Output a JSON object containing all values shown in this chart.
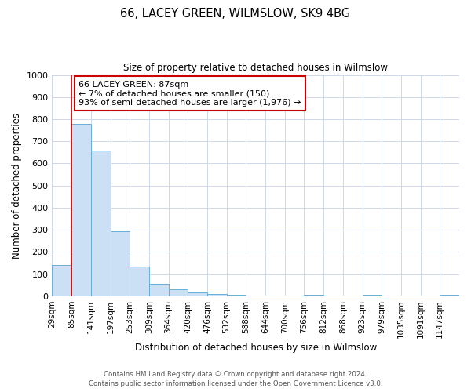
{
  "title": "66, LACEY GREEN, WILMSLOW, SK9 4BG",
  "subtitle": "Size of property relative to detached houses in Wilmslow",
  "xlabel": "Distribution of detached houses by size in Wilmslow",
  "ylabel": "Number of detached properties",
  "bar_labels": [
    "29sqm",
    "85sqm",
    "141sqm",
    "197sqm",
    "253sqm",
    "309sqm",
    "364sqm",
    "420sqm",
    "476sqm",
    "532sqm",
    "588sqm",
    "644sqm",
    "700sqm",
    "756sqm",
    "812sqm",
    "868sqm",
    "923sqm",
    "979sqm",
    "1035sqm",
    "1091sqm",
    "1147sqm"
  ],
  "bar_values": [
    140,
    780,
    660,
    295,
    135,
    57,
    32,
    17,
    10,
    8,
    3,
    3,
    3,
    8,
    3,
    3,
    8,
    3,
    3,
    3,
    5
  ],
  "bar_color": "#cce0f5",
  "bar_edge_color": "#6aaed6",
  "red_line_x": 1,
  "ylim": [
    0,
    1000
  ],
  "yticks": [
    0,
    100,
    200,
    300,
    400,
    500,
    600,
    700,
    800,
    900,
    1000
  ],
  "annotation_title": "66 LACEY GREEN: 87sqm",
  "annotation_line1": "← 7% of detached houses are smaller (150)",
  "annotation_line2": "93% of semi-detached houses are larger (1,976) →",
  "annotation_box_color": "#ffffff",
  "annotation_box_edge": "#cc0000",
  "footer_line1": "Contains HM Land Registry data © Crown copyright and database right 2024.",
  "footer_line2": "Contains public sector information licensed under the Open Government Licence v3.0.",
  "background_color": "#ffffff",
  "grid_color": "#d0d8e8"
}
